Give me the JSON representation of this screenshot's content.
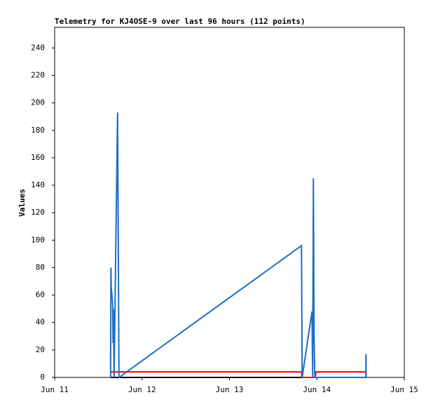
{
  "chart_data": {
    "type": "line",
    "title": "Telemetry for KJ4OSE-9 over last 96 hours (112 points)",
    "y_label": "Values",
    "xlim": [
      0,
      4
    ],
    "xticks": [
      {
        "value": 0,
        "label": "Jun 11"
      },
      {
        "value": 1,
        "label": "Jun 12"
      },
      {
        "value": 2,
        "label": "Jun 13"
      },
      {
        "value": 3,
        "label": "Jun 14"
      },
      {
        "value": 4,
        "label": "Jun 15"
      }
    ],
    "ylim": [
      0,
      255
    ],
    "yticks": [
      0,
      20,
      40,
      60,
      80,
      100,
      120,
      140,
      160,
      180,
      200,
      220,
      240
    ],
    "series": [
      {
        "name": "black",
        "color": "#000000",
        "x": [
          0.64,
          3.56
        ],
        "values": [
          0,
          0
        ]
      },
      {
        "name": "red",
        "color": "#ff0000",
        "x": [
          0.64,
          2.824,
          2.83,
          2.98,
          2.99,
          3.56
        ],
        "values": [
          4,
          4,
          0,
          0,
          4,
          4
        ]
      },
      {
        "name": "blue",
        "color": "#1e6ec8",
        "x": [
          0.64,
          0.644,
          0.648,
          0.656,
          0.664,
          0.668,
          0.672,
          0.68,
          0.72,
          0.736,
          2.824,
          2.832,
          2.944,
          2.952,
          2.96,
          2.968,
          2.976,
          3.56,
          3.562,
          3.564
        ],
        "values": [
          0,
          80,
          65,
          60,
          52,
          25,
          50,
          0,
          193,
          0,
          96,
          0,
          48,
          0,
          145,
          32,
          0,
          0,
          17,
          0
        ]
      }
    ]
  }
}
